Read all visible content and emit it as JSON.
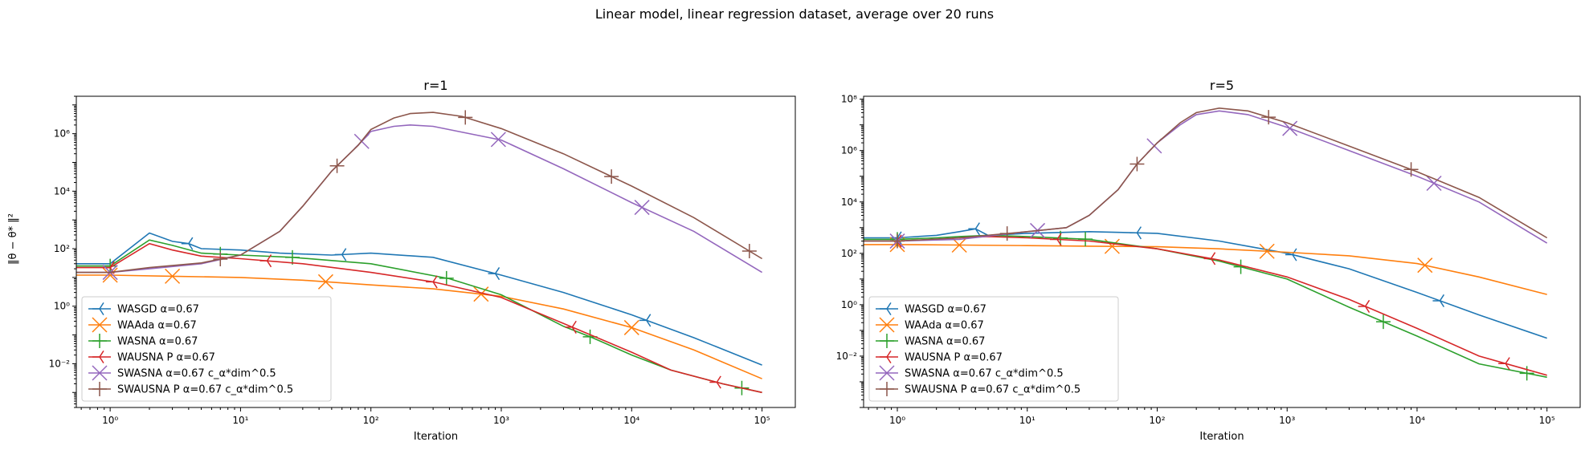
{
  "figure": {
    "suptitle": "Linear model, linear regression dataset, average over 20 runs",
    "ylabel": "‖θ − θ* ‖²"
  },
  "colors": {
    "WASGD": "#1f77b4",
    "WAAda": "#ff7f0e",
    "WASNA": "#2ca02c",
    "WAUSNA": "#d62728",
    "SWASNA": "#9467bd",
    "SWAUSNA": "#8c564b"
  },
  "chart_data": [
    {
      "type": "line",
      "title": "r=1",
      "xlabel": "Iteration",
      "ylabel": "‖θ − θ* ‖²",
      "xscale": "log",
      "yscale": "log",
      "xlim": [
        0.55,
        180000
      ],
      "ylim": [
        0.0003,
        20000000
      ],
      "xticks": [
        1,
        10,
        100,
        1000,
        10000,
        100000
      ],
      "xtick_labels": [
        "10⁰",
        "10¹",
        "10²",
        "10³",
        "10⁴",
        "10⁵"
      ],
      "yticks": [
        0.01,
        1,
        100,
        10000,
        1000000
      ],
      "ytick_labels": [
        "10⁻²",
        "10⁰",
        "10²",
        "10⁴",
        "10⁶"
      ],
      "grid": false,
      "legend": "lower-left",
      "series": [
        {
          "key": "WASGD",
          "name": "WASGD α=0.67",
          "marker": "tri_left",
          "x": [
            0.55,
            1,
            2,
            3,
            4,
            5,
            10,
            20,
            30,
            50,
            100,
            300,
            1000,
            3000,
            10000,
            30000,
            100000
          ],
          "y": [
            30,
            30,
            350,
            180,
            150,
            100,
            90,
            70,
            65,
            60,
            70,
            50,
            12,
            3,
            0.5,
            0.08,
            0.009
          ],
          "markers_x": [
            4,
            60,
            900,
            13000
          ]
        },
        {
          "key": "WAAda",
          "name": "WAAda α=0.67",
          "marker": "x",
          "x": [
            0.55,
            1,
            3,
            10,
            30,
            100,
            300,
            1000,
            3000,
            10000,
            30000,
            100000
          ],
          "y": [
            12,
            12,
            11,
            10,
            8,
            5.5,
            4,
            2.2,
            0.8,
            0.18,
            0.03,
            0.003
          ],
          "markers_x": [
            1,
            3,
            45,
            700,
            10000
          ]
        },
        {
          "key": "WASNA",
          "name": "WASNA α=0.67",
          "marker": "plus",
          "x": [
            0.55,
            1,
            2,
            3,
            5,
            10,
            25,
            100,
            400,
            1000,
            3000,
            5000,
            10000,
            20000,
            50000,
            100000
          ],
          "y": [
            25,
            25,
            200,
            130,
            70,
            60,
            50,
            30,
            9,
            2.5,
            0.2,
            0.08,
            0.02,
            0.006,
            0.002,
            0.001
          ],
          "markers_x": [
            1,
            7,
            25,
            380,
            4800,
            70000
          ]
        },
        {
          "key": "WAUSNA",
          "name": "WAUSNA P α=0.67",
          "marker": "tri_left",
          "x": [
            0.55,
            1,
            2,
            3,
            5,
            10,
            30,
            100,
            300,
            1000,
            3000,
            10000,
            20000,
            50000,
            100000
          ],
          "y": [
            22,
            22,
            150,
            90,
            55,
            45,
            30,
            15,
            7,
            2,
            0.25,
            0.025,
            0.006,
            0.002,
            0.001
          ],
          "markers_x": [
            1,
            16,
            300,
            3500,
            45000
          ]
        },
        {
          "key": "SWASNA",
          "name": "SWASNA α=0.67 c_α*dim^0.5",
          "marker": "x",
          "x": [
            0.55,
            1,
            2,
            5,
            10,
            20,
            30,
            50,
            80,
            100,
            150,
            200,
            300,
            1000,
            3000,
            10000,
            30000,
            100000
          ],
          "y": [
            15,
            15,
            20,
            30,
            60,
            400,
            3000,
            50000,
            400000,
            1200000,
            1800000,
            2000000,
            1800000,
            600000,
            60000,
            4000,
            400,
            15
          ],
          "markers_x": [
            1,
            85,
            950,
            12000
          ]
        },
        {
          "key": "SWAUSNA",
          "name": "SWAUSNA P α=0.67 c_α*dim^0.5",
          "marker": "plus",
          "x": [
            0.55,
            1,
            2,
            5,
            10,
            20,
            30,
            50,
            80,
            100,
            150,
            200,
            300,
            500,
            1000,
            3000,
            10000,
            30000,
            100000
          ],
          "y": [
            15,
            15,
            22,
            32,
            60,
            400,
            3000,
            50000,
            400000,
            1400000,
            3500000,
            5000000,
            5500000,
            4000000,
            1500000,
            200000,
            15000,
            1200,
            45
          ],
          "markers_x": [
            7,
            55,
            530,
            7000,
            80000
          ]
        }
      ]
    },
    {
      "type": "line",
      "title": "r=5",
      "xlabel": "Iteration",
      "xscale": "log",
      "yscale": "log",
      "xlim": [
        0.55,
        180000
      ],
      "ylim": [
        0.0001,
        130000000
      ],
      "xticks": [
        1,
        10,
        100,
        1000,
        10000,
        100000
      ],
      "xtick_labels": [
        "10⁰",
        "10¹",
        "10²",
        "10³",
        "10⁴",
        "10⁵"
      ],
      "yticks": [
        0.01,
        1,
        100,
        10000,
        1000000,
        100000000
      ],
      "ytick_labels": [
        "10⁻²",
        "10⁰",
        "10²",
        "10⁴",
        "10⁶",
        "10⁸"
      ],
      "grid": false,
      "legend": "lower-left",
      "series": [
        {
          "key": "WASGD",
          "name": "WASGD α=0.67",
          "marker": "tri_left",
          "x": [
            0.55,
            1,
            2,
            3,
            4,
            5,
            10,
            30,
            100,
            300,
            1000,
            3000,
            10000,
            30000,
            100000
          ],
          "y": [
            400,
            400,
            500,
            700,
            900,
            500,
            600,
            700,
            600,
            300,
            100,
            25,
            3,
            0.4,
            0.05
          ],
          "markers_x": [
            1,
            4,
            70,
            1100,
            15000
          ]
        },
        {
          "key": "WAAda",
          "name": "WAAda α=0.67",
          "marker": "x",
          "x": [
            0.55,
            1,
            3,
            10,
            30,
            100,
            300,
            1000,
            3000,
            10000,
            30000,
            100000
          ],
          "y": [
            220,
            220,
            210,
            200,
            190,
            180,
            150,
            110,
            80,
            40,
            12,
            2.5
          ],
          "markers_x": [
            1,
            3,
            45,
            700,
            11500
          ]
        },
        {
          "key": "WASNA",
          "name": "WASNA α=0.67",
          "marker": "plus",
          "x": [
            0.55,
            1,
            2,
            3,
            5,
            10,
            30,
            100,
            300,
            1000,
            3000,
            10000,
            30000,
            100000
          ],
          "y": [
            350,
            350,
            400,
            450,
            500,
            450,
            350,
            150,
            50,
            10,
            0.8,
            0.06,
            0.005,
            0.0015
          ],
          "markers_x": [
            1,
            18,
            28,
            440,
            5500,
            70000
          ]
        },
        {
          "key": "WAUSNA",
          "name": "WAUSNA P α=0.67",
          "marker": "tri_left",
          "x": [
            0.55,
            1,
            2,
            3,
            5,
            10,
            30,
            100,
            300,
            1000,
            3000,
            10000,
            30000,
            100000
          ],
          "y": [
            300,
            300,
            350,
            400,
            450,
            400,
            300,
            150,
            55,
            12,
            1.6,
            0.12,
            0.01,
            0.0018
          ],
          "markers_x": [
            1,
            17,
            260,
            4000,
            48000
          ]
        },
        {
          "key": "SWASNA",
          "name": "SWASNA α=0.67 c_α*dim^0.5",
          "marker": "x",
          "x": [
            0.55,
            1,
            3,
            10,
            20,
            30,
            50,
            70,
            100,
            150,
            200,
            300,
            500,
            1000,
            3000,
            10000,
            30000,
            100000
          ],
          "y": [
            300,
            300,
            350,
            700,
            1000,
            3000,
            30000,
            300000,
            2000000,
            10000000,
            25000000,
            35000000,
            25000000,
            8000000,
            1000000,
            100000,
            10000,
            250
          ],
          "markers_x": [
            1,
            12,
            95,
            1050,
            13500
          ]
        },
        {
          "key": "SWAUSNA",
          "name": "SWAUSNA P α=0.67 c_α*dim^0.5",
          "marker": "plus",
          "x": [
            0.55,
            1,
            3,
            10,
            20,
            30,
            50,
            70,
            100,
            150,
            200,
            300,
            500,
            1000,
            3000,
            10000,
            30000,
            100000
          ],
          "y": [
            300,
            300,
            400,
            700,
            1000,
            3000,
            30000,
            300000,
            2000000,
            12000000,
            30000000,
            45000000,
            35000000,
            12000000,
            1500000,
            150000,
            15000,
            400
          ],
          "markers_x": [
            1,
            7,
            70,
            720,
            9000
          ]
        }
      ]
    }
  ]
}
